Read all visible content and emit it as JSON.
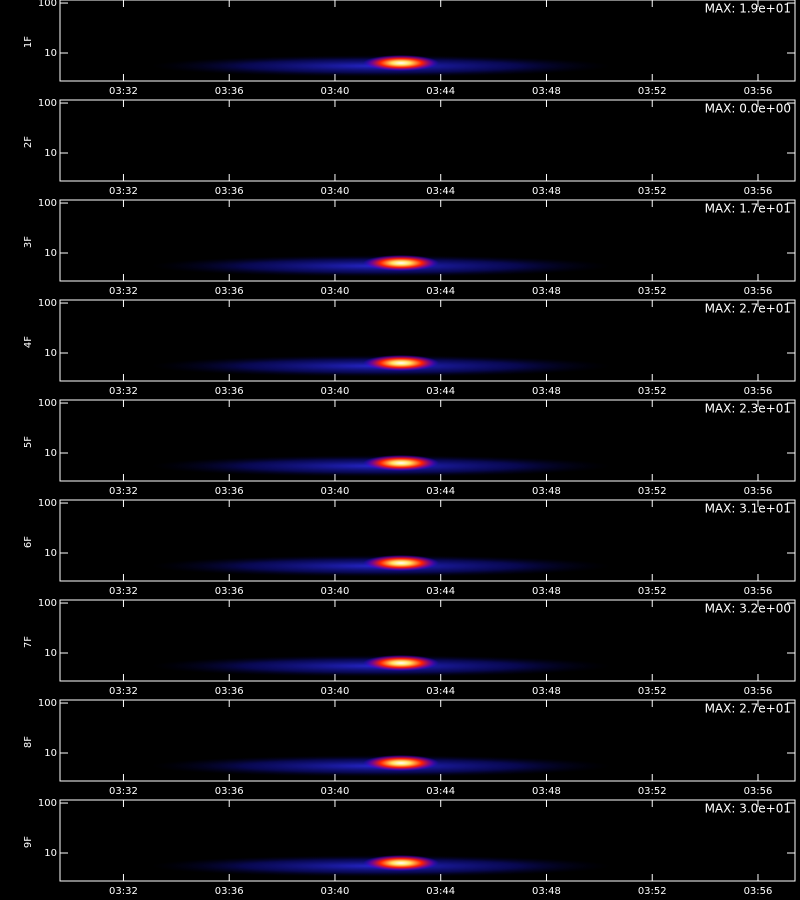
{
  "chart_data": [
    {
      "type": "spectrogram",
      "ylabel": "1F",
      "annotation": "MAX: 1.9e+01",
      "max_value": 19,
      "log_y": true,
      "ylim": [
        2.75,
        115
      ],
      "yticks": [
        10,
        100
      ],
      "xlim": [
        209.6,
        237.4
      ],
      "xticks": [
        {
          "value": 212,
          "label": "03:32"
        },
        {
          "value": 216,
          "label": "03:36"
        },
        {
          "value": 220,
          "label": "03:40"
        },
        {
          "value": 224,
          "label": "03:44"
        },
        {
          "value": 228,
          "label": "03:48"
        },
        {
          "value": 232,
          "label": "03:52"
        },
        {
          "value": 236,
          "label": "03:56"
        }
      ]
    },
    {
      "type": "spectrogram",
      "ylabel": "2F",
      "annotation": "MAX: 0.0e+00",
      "max_value": 0,
      "log_y": true,
      "ylim": [
        2.75,
        115
      ],
      "yticks": [
        10,
        100
      ],
      "xlim": [
        209.6,
        237.4
      ],
      "xticks": [
        {
          "value": 212,
          "label": "03:32"
        },
        {
          "value": 216,
          "label": "03:36"
        },
        {
          "value": 220,
          "label": "03:40"
        },
        {
          "value": 224,
          "label": "03:44"
        },
        {
          "value": 228,
          "label": "03:48"
        },
        {
          "value": 232,
          "label": "03:52"
        },
        {
          "value": 236,
          "label": "03:56"
        }
      ]
    },
    {
      "type": "spectrogram",
      "ylabel": "3F",
      "annotation": "MAX: 1.7e+01",
      "max_value": 17,
      "log_y": true,
      "ylim": [
        2.75,
        115
      ],
      "yticks": [
        10,
        100
      ],
      "xlim": [
        209.6,
        237.4
      ],
      "xticks": [
        {
          "value": 212,
          "label": "03:32"
        },
        {
          "value": 216,
          "label": "03:36"
        },
        {
          "value": 220,
          "label": "03:40"
        },
        {
          "value": 224,
          "label": "03:44"
        },
        {
          "value": 228,
          "label": "03:48"
        },
        {
          "value": 232,
          "label": "03:52"
        },
        {
          "value": 236,
          "label": "03:56"
        }
      ]
    },
    {
      "type": "spectrogram",
      "ylabel": "4F",
      "annotation": "MAX: 2.7e+01",
      "max_value": 27,
      "log_y": true,
      "ylim": [
        2.75,
        115
      ],
      "yticks": [
        10,
        100
      ],
      "xlim": [
        209.6,
        237.4
      ],
      "xticks": [
        {
          "value": 212,
          "label": "03:32"
        },
        {
          "value": 216,
          "label": "03:36"
        },
        {
          "value": 220,
          "label": "03:40"
        },
        {
          "value": 224,
          "label": "03:44"
        },
        {
          "value": 228,
          "label": "03:48"
        },
        {
          "value": 232,
          "label": "03:52"
        },
        {
          "value": 236,
          "label": "03:56"
        }
      ]
    },
    {
      "type": "spectrogram",
      "ylabel": "5F",
      "annotation": "MAX: 2.3e+01",
      "max_value": 23,
      "log_y": true,
      "ylim": [
        2.75,
        115
      ],
      "yticks": [
        10,
        100
      ],
      "xlim": [
        209.6,
        237.4
      ],
      "xticks": [
        {
          "value": 212,
          "label": "03:32"
        },
        {
          "value": 216,
          "label": "03:36"
        },
        {
          "value": 220,
          "label": "03:40"
        },
        {
          "value": 224,
          "label": "03:44"
        },
        {
          "value": 228,
          "label": "03:48"
        },
        {
          "value": 232,
          "label": "03:52"
        },
        {
          "value": 236,
          "label": "03:56"
        }
      ]
    },
    {
      "type": "spectrogram",
      "ylabel": "6F",
      "annotation": "MAX: 3.1e+01",
      "max_value": 31,
      "log_y": true,
      "ylim": [
        2.75,
        115
      ],
      "yticks": [
        10,
        100
      ],
      "xlim": [
        209.6,
        237.4
      ],
      "xticks": [
        {
          "value": 212,
          "label": "03:32"
        },
        {
          "value": 216,
          "label": "03:36"
        },
        {
          "value": 220,
          "label": "03:40"
        },
        {
          "value": 224,
          "label": "03:44"
        },
        {
          "value": 228,
          "label": "03:48"
        },
        {
          "value": 232,
          "label": "03:52"
        },
        {
          "value": 236,
          "label": "03:56"
        }
      ]
    },
    {
      "type": "spectrogram",
      "ylabel": "7F",
      "annotation": "MAX: 3.2e+00",
      "max_value": 3.2,
      "log_y": true,
      "ylim": [
        2.75,
        115
      ],
      "yticks": [
        10,
        100
      ],
      "xlim": [
        209.6,
        237.4
      ],
      "xticks": [
        {
          "value": 212,
          "label": "03:32"
        },
        {
          "value": 216,
          "label": "03:36"
        },
        {
          "value": 220,
          "label": "03:40"
        },
        {
          "value": 224,
          "label": "03:44"
        },
        {
          "value": 228,
          "label": "03:48"
        },
        {
          "value": 232,
          "label": "03:52"
        },
        {
          "value": 236,
          "label": "03:56"
        }
      ]
    },
    {
      "type": "spectrogram",
      "ylabel": "8F",
      "annotation": "MAX: 2.7e+01",
      "max_value": 27,
      "log_y": true,
      "ylim": [
        2.75,
        115
      ],
      "yticks": [
        10,
        100
      ],
      "xlim": [
        209.6,
        237.4
      ],
      "xticks": [
        {
          "value": 212,
          "label": "03:32"
        },
        {
          "value": 216,
          "label": "03:36"
        },
        {
          "value": 220,
          "label": "03:40"
        },
        {
          "value": 224,
          "label": "03:44"
        },
        {
          "value": 228,
          "label": "03:48"
        },
        {
          "value": 232,
          "label": "03:52"
        },
        {
          "value": 236,
          "label": "03:56"
        }
      ]
    },
    {
      "type": "spectrogram",
      "ylabel": "9F",
      "annotation": "MAX: 3.0e+01",
      "max_value": 30,
      "log_y": true,
      "ylim": [
        2.75,
        115
      ],
      "yticks": [
        10,
        100
      ],
      "xlim": [
        209.6,
        237.4
      ],
      "xticks": [
        {
          "value": 212,
          "label": "03:32"
        },
        {
          "value": 216,
          "label": "03:36"
        },
        {
          "value": 220,
          "label": "03:40"
        },
        {
          "value": 224,
          "label": "03:44"
        },
        {
          "value": 228,
          "label": "03:48"
        },
        {
          "value": 232,
          "label": "03:52"
        },
        {
          "value": 236,
          "label": "03:56"
        }
      ]
    }
  ]
}
